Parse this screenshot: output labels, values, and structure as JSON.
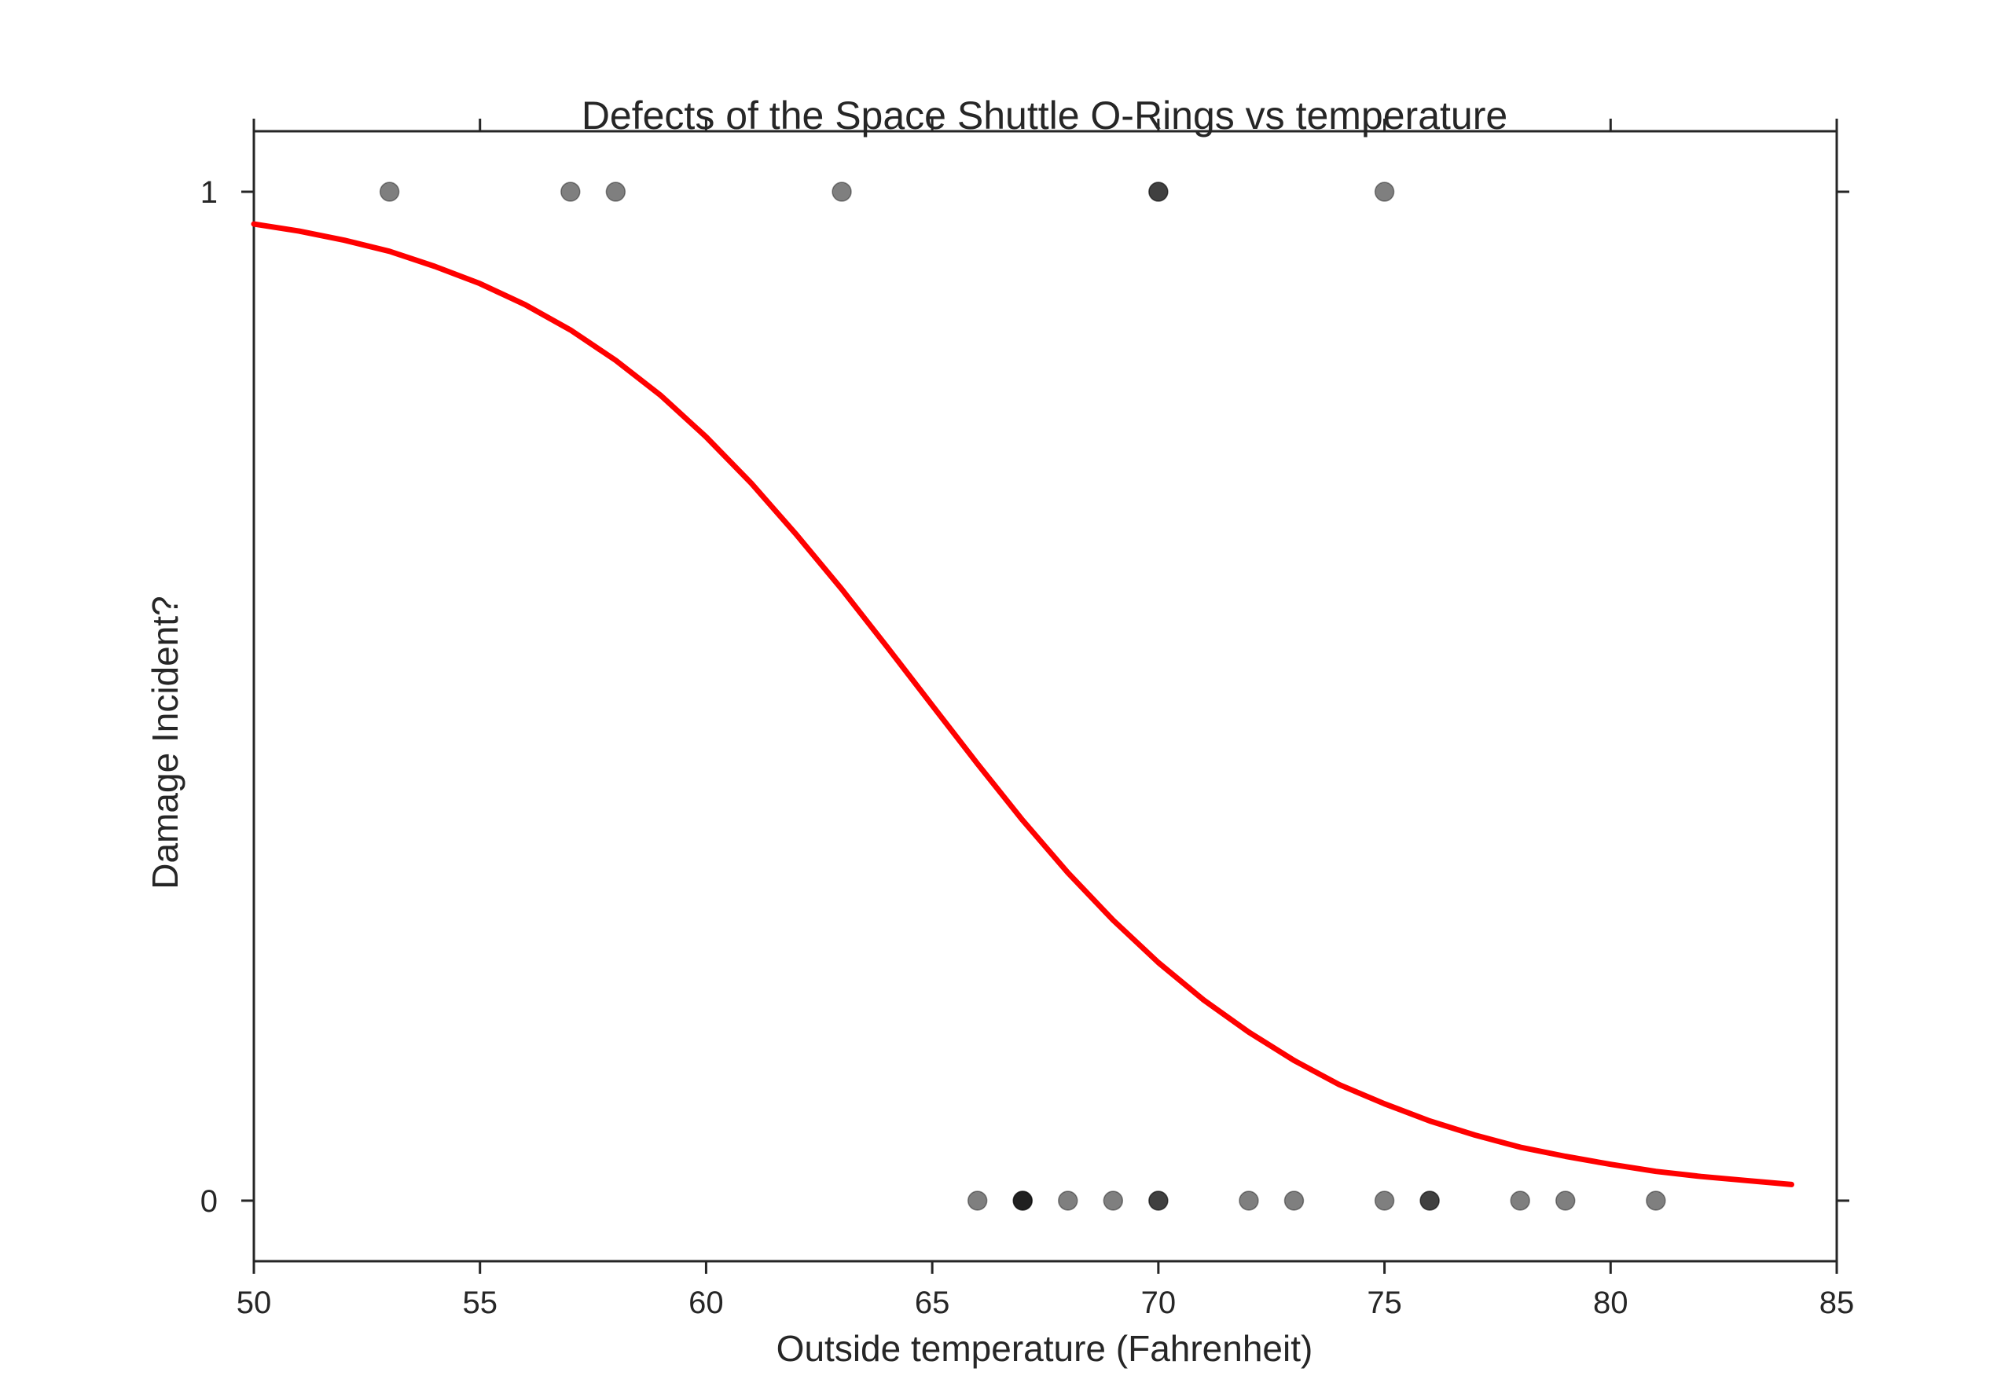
{
  "chart_data": {
    "type": "scatter",
    "title": "Defects of the Space Shuttle O-Rings vs temperature",
    "xlabel": "Outside temperature (Fahrenheit)",
    "ylabel": "Damage Incident?",
    "xlim": [
      50,
      85
    ],
    "ylim": [
      -0.06,
      1.06
    ],
    "x_ticks": [
      50,
      55,
      60,
      65,
      70,
      75,
      80,
      85
    ],
    "y_ticks": [
      0,
      1
    ],
    "grid": false,
    "legend": "none",
    "series": [
      {
        "type": "scatter",
        "points": [
          {
            "x": 53,
            "y": 1,
            "count": 1
          },
          {
            "x": 57,
            "y": 1,
            "count": 1
          },
          {
            "x": 58,
            "y": 1,
            "count": 1
          },
          {
            "x": 63,
            "y": 1,
            "count": 1
          },
          {
            "x": 70,
            "y": 1,
            "count": 2
          },
          {
            "x": 75,
            "y": 1,
            "count": 1
          },
          {
            "x": 66,
            "y": 0,
            "count": 1
          },
          {
            "x": 67,
            "y": 0,
            "count": 3
          },
          {
            "x": 68,
            "y": 0,
            "count": 1
          },
          {
            "x": 69,
            "y": 0,
            "count": 1
          },
          {
            "x": 70,
            "y": 0,
            "count": 2
          },
          {
            "x": 72,
            "y": 0,
            "count": 1
          },
          {
            "x": 73,
            "y": 0,
            "count": 1
          },
          {
            "x": 75,
            "y": 0,
            "count": 1
          },
          {
            "x": 76,
            "y": 0,
            "count": 2
          },
          {
            "x": 78,
            "y": 0,
            "count": 1
          },
          {
            "x": 79,
            "y": 0,
            "count": 1
          },
          {
            "x": 81,
            "y": 0,
            "count": 1
          }
        ],
        "color": "#000000"
      },
      {
        "type": "line",
        "x": [
          50,
          51,
          52,
          53,
          54,
          55,
          56,
          57,
          58,
          59,
          60,
          61,
          62,
          63,
          64,
          65,
          66,
          67,
          68,
          69,
          70,
          71,
          72,
          73,
          74,
          75,
          76,
          77,
          78,
          79,
          80,
          81,
          82,
          83,
          84
        ],
        "values": [
          0.968,
          0.961,
          0.952,
          0.941,
          0.926,
          0.909,
          0.888,
          0.863,
          0.833,
          0.798,
          0.757,
          0.711,
          0.66,
          0.606,
          0.549,
          0.491,
          0.433,
          0.377,
          0.325,
          0.278,
          0.236,
          0.199,
          0.167,
          0.139,
          0.115,
          0.096,
          0.079,
          0.065,
          0.053,
          0.044,
          0.036,
          0.029,
          0.024,
          0.02,
          0.016
        ],
        "color": "#ff0000"
      }
    ]
  }
}
